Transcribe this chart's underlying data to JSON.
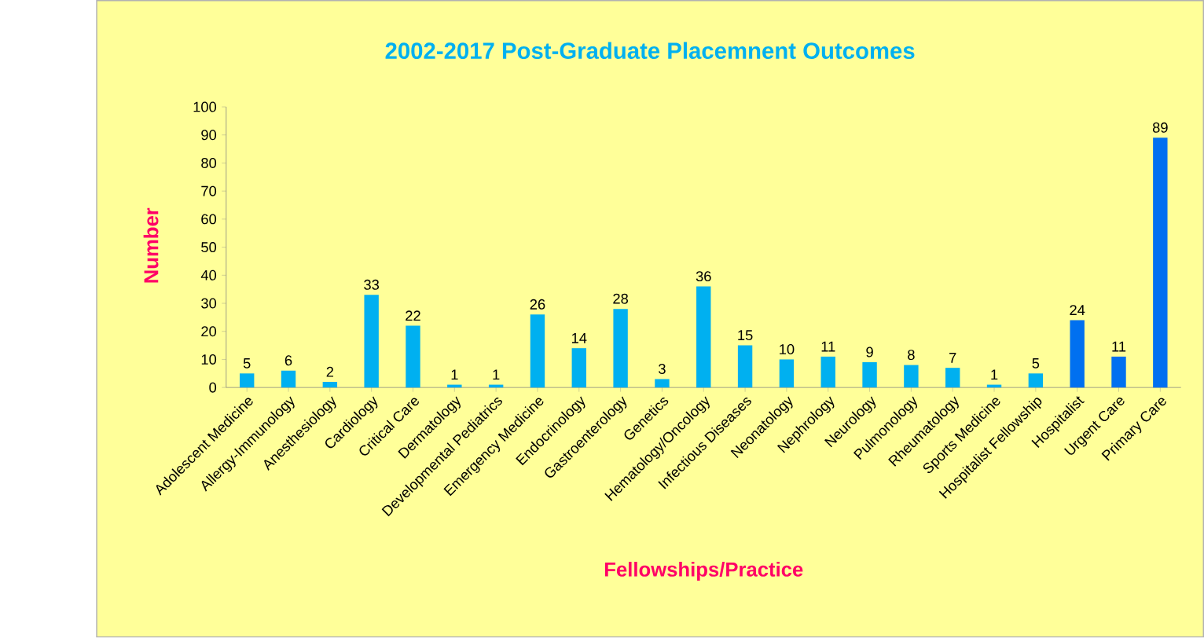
{
  "chart_data": {
    "type": "bar",
    "title": "2002-2017  Post-Graduate Placemnent Outcomes",
    "xlabel": "Fellowships/Practice",
    "ylabel": "Number",
    "categories": [
      "Adolescent Medicine",
      "Allergy-Immunology",
      "Anesthesiology",
      "Cardiology",
      "Critical Care",
      "Dermatology",
      "Developmental Pediatrics",
      "Emergency Medicine",
      "Endocrinology",
      "Gastroenterology",
      "Genetics",
      "Hematology/Oncology",
      "Infectious Diseases",
      "Neonatology",
      "Nephrology",
      "Neurology",
      "Pulmonology",
      "Rheumatology",
      "Sports Medicine",
      "Hospitalist Fellowship",
      "Hospitalist",
      "Urgent Care",
      "Primary Care"
    ],
    "values": [
      5,
      6,
      2,
      33,
      22,
      1,
      1,
      26,
      14,
      28,
      3,
      36,
      15,
      10,
      11,
      9,
      8,
      7,
      1,
      5,
      24,
      11,
      89
    ],
    "colors": [
      "#00b0f0",
      "#00b0f0",
      "#00b0f0",
      "#00b0f0",
      "#00b0f0",
      "#00b0f0",
      "#00b0f0",
      "#00b0f0",
      "#00b0f0",
      "#00b0f0",
      "#00b0f0",
      "#00b0f0",
      "#00b0f0",
      "#00b0f0",
      "#00b0f0",
      "#00b0f0",
      "#00b0f0",
      "#00b0f0",
      "#00b0f0",
      "#00b0f0",
      "#0070f0",
      "#0070f0",
      "#0070f0"
    ],
    "ylim": [
      0,
      100
    ],
    "yticks": [
      0,
      10,
      20,
      30,
      40,
      50,
      60,
      70,
      80,
      90,
      100
    ],
    "data_labels": true
  }
}
